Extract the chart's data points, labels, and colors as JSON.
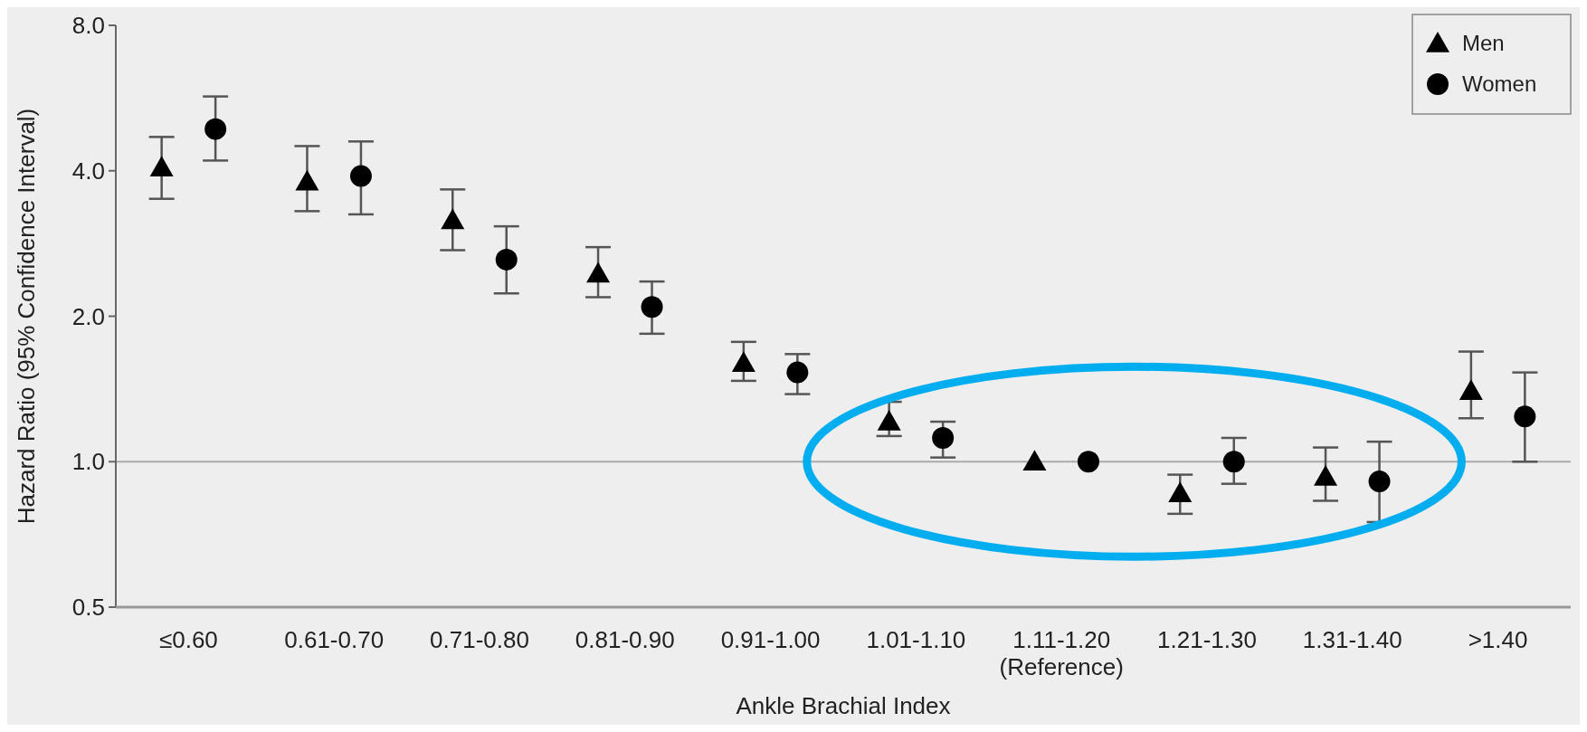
{
  "chart_data": {
    "type": "scatter",
    "xlabel": "Ankle Brachial Index",
    "ylabel": "Hazard Ratio (95% Confidence Interval)",
    "categories": [
      "≤0.60",
      "0.61-0.70",
      "0.71-0.80",
      "0.81-0.90",
      "0.91-1.00",
      "1.01-1.10",
      "1.11-1.20\n(Reference)",
      "1.21-1.30",
      "1.31-1.40",
      ">1.40"
    ],
    "log": "y",
    "ylim": [
      0.5,
      8
    ],
    "yticks": [
      {
        "value": 0.5,
        "label": "0.5"
      },
      {
        "value": 1,
        "label": "1.0"
      },
      {
        "value": 2,
        "label": "2.0"
      },
      {
        "value": 4,
        "label": "4.0"
      },
      {
        "value": 8,
        "label": "8.0"
      }
    ],
    "legend": "top right",
    "ref_lines": [
      {
        "axis": "y",
        "value": 1,
        "color": "#aaaaaa"
      }
    ],
    "series": [
      {
        "name": "Men",
        "color": "#000000",
        "marker": "triangle",
        "values": [
          4.06,
          3.8,
          3.16,
          2.45,
          1.6,
          1.21,
          1.0,
          0.86,
          0.93,
          1.4
        ],
        "errors": [
          [
            3.5,
            4.7
          ],
          [
            3.3,
            4.5
          ],
          [
            2.74,
            3.66
          ],
          [
            2.19,
            2.78
          ],
          [
            1.47,
            1.77
          ],
          [
            1.13,
            1.33
          ],
          null,
          [
            0.78,
            0.94
          ],
          [
            0.83,
            1.07
          ],
          [
            1.23,
            1.69
          ]
        ]
      },
      {
        "name": "Women",
        "color": "#000000",
        "marker": "circle",
        "values": [
          4.88,
          3.9,
          2.62,
          2.09,
          1.53,
          1.12,
          1.0,
          1.0,
          0.91,
          1.24
        ],
        "errors": [
          [
            4.2,
            5.7
          ],
          [
            3.25,
            4.6
          ],
          [
            2.23,
            3.07
          ],
          [
            1.84,
            2.36
          ],
          [
            1.38,
            1.67
          ],
          [
            1.02,
            1.21
          ],
          null,
          [
            0.9,
            1.12
          ],
          [
            0.75,
            1.1
          ],
          [
            1.0,
            1.53
          ]
        ]
      }
    ]
  }
}
